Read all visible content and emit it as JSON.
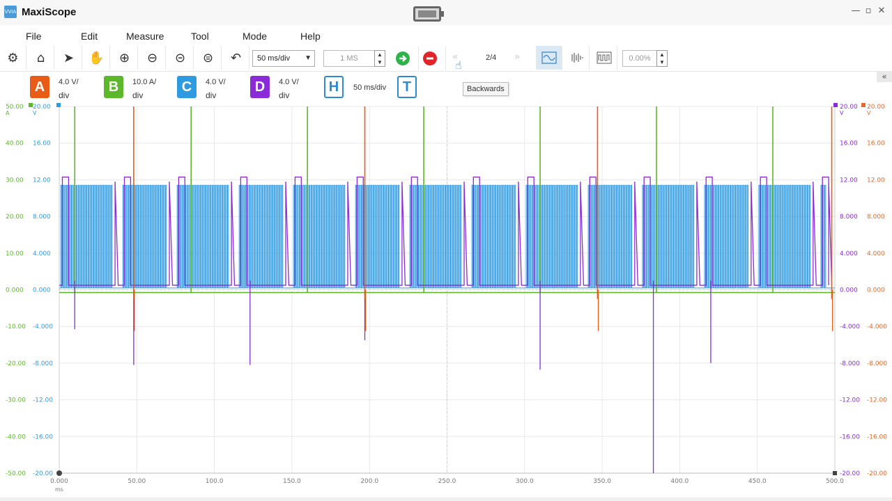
{
  "window": {
    "title": "MaxiScope",
    "logo_text": "VVIA"
  },
  "menu": [
    "File",
    "Edit",
    "Measure",
    "Tool",
    "Mode",
    "Help"
  ],
  "toolbar": {
    "timebase": "50 ms/div",
    "samples": "1 MS",
    "page": "2/4",
    "trigger_level": "0.00%",
    "tooltip": "Backwards"
  },
  "channels": [
    {
      "id": "A",
      "scale_value": "4.0 V/",
      "scale_unit": "div",
      "color": "#e85c18"
    },
    {
      "id": "B",
      "scale_value": "10.0 A/",
      "scale_unit": "div",
      "color": "#5cb82a"
    },
    {
      "id": "C",
      "scale_value": "4.0 V/",
      "scale_unit": "div",
      "color": "#2e9be0"
    },
    {
      "id": "D",
      "scale_value": "4.0 V/",
      "scale_unit": "div",
      "color": "#8a2ad8"
    }
  ],
  "horizontal": {
    "label": "H",
    "value": "50 ms/div"
  },
  "trigger": {
    "label": "T"
  },
  "plot": {
    "x_ticks": [
      "0.000",
      "50.00",
      "100.0",
      "150.0",
      "200.0",
      "250.0",
      "300.0",
      "350.0",
      "400.0",
      "450.0",
      "500.0"
    ],
    "x_unit": "ms",
    "left_amp_ticks": [
      "50.00",
      "40.00",
      "30.00",
      "20.00",
      "10.00",
      "0.000",
      "-10.00",
      "-20.00",
      "-30.00",
      "-40.00",
      "-50.00"
    ],
    "left_amp_unit": "A",
    "left_volt_ticks": [
      "20.00",
      "16.00",
      "12.00",
      "8.000",
      "4.000",
      "0.000",
      "-4.000",
      "-8.000",
      "-12.00",
      "-16.00",
      "-20.00"
    ],
    "left_volt_unit": "V",
    "right_purple_ticks": [
      "20.00",
      "16.00",
      "12.00",
      "8.000",
      "4.000",
      "0.000",
      "-4.000",
      "-8.000",
      "-12.00",
      "-16.00",
      "-20.00"
    ],
    "right_purple_unit": "V",
    "right_orange_ticks": [
      "20.00",
      "16.00",
      "12.00",
      "8.000",
      "4.000",
      "0.000",
      "-4.000",
      "-8.000",
      "-12.00",
      "-16.00",
      "-20.00"
    ],
    "right_orange_unit": "V",
    "colors": {
      "amp_axis": "#5cb82a",
      "volt_axis": "#2e9be0",
      "purple_axis": "#8a2ad8",
      "orange_axis": "#e06a2a",
      "grid": "#e8e8e8"
    }
  },
  "chart_data": {
    "type": "line",
    "x_range": [
      0,
      500
    ],
    "x_unit": "ms",
    "y_range": [
      -20,
      20
    ],
    "series": [
      {
        "name": "A",
        "pulse_times_ms": [
          48,
          197,
          347,
          498
        ]
      },
      {
        "name": "B",
        "pulse_times_ms": [
          10,
          85,
          160,
          235,
          310,
          385,
          460
        ]
      },
      {
        "name": "C",
        "burst_level_V": 11.4,
        "burst_starts_ms": [
          0,
          40,
          75,
          115,
          150,
          190,
          225,
          265,
          300,
          340,
          375,
          415,
          450,
          490
        ]
      },
      {
        "name": "D",
        "high_level_V": 12.3,
        "spike_min_V": [
          -4.3,
          -8.2,
          -8.2,
          -5.5,
          -8.7,
          -20.0,
          -8.0
        ]
      }
    ]
  }
}
